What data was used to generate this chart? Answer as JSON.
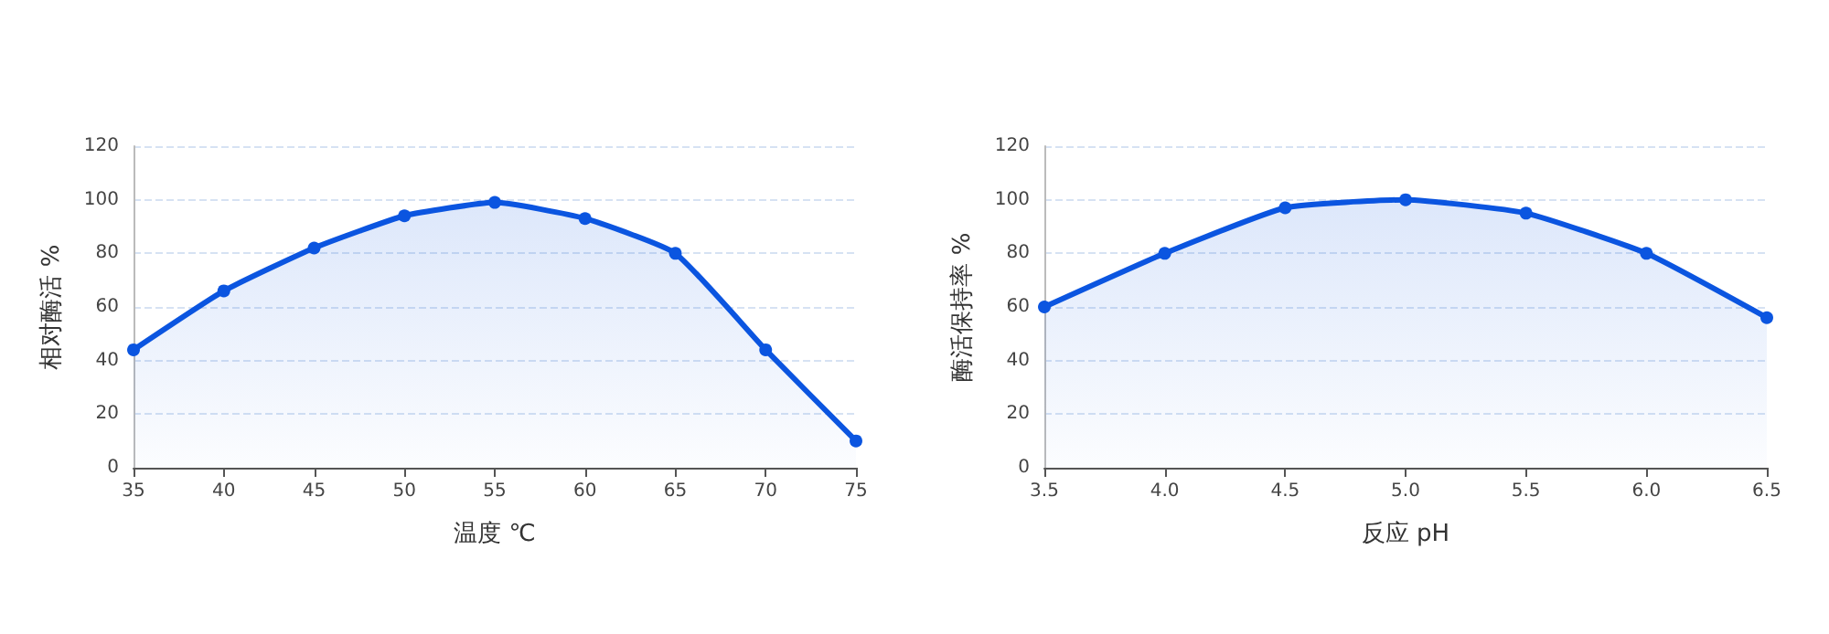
{
  "chart_data": [
    {
      "type": "area",
      "xlabel": "温度 ℃",
      "ylabel": "相对酶活 %",
      "x": [
        35,
        40,
        45,
        50,
        55,
        60,
        65,
        70,
        75
      ],
      "series": [
        {
          "color": "#0b55e0",
          "values": [
            44,
            66,
            82,
            94,
            99,
            93,
            80,
            44,
            10
          ]
        }
      ],
      "xlim": [
        35,
        75
      ],
      "xticks": [
        35,
        40,
        45,
        50,
        55,
        60,
        65,
        70,
        75
      ],
      "ylim": [
        0,
        120
      ],
      "yticks": [
        0,
        20,
        40,
        60,
        80,
        100,
        120
      ],
      "grid": "y",
      "marker": "circle",
      "line_style": "solid"
    },
    {
      "type": "area",
      "xlabel": "反应 pH",
      "ylabel": "酶活保持率 %",
      "x": [
        3.5,
        4.0,
        4.5,
        5.0,
        5.5,
        6.0,
        6.5
      ],
      "series": [
        {
          "color": "#0b55e0",
          "values": [
            60,
            80,
            97,
            100,
            95,
            80,
            56
          ]
        }
      ],
      "xlim": [
        3.5,
        6.5
      ],
      "xticks": [
        3.5,
        {
          "value": 4,
          "label": "4.0"
        },
        4.5,
        {
          "value": 5,
          "label": "5.0"
        },
        5.5,
        {
          "value": 6,
          "label": "6.0"
        },
        6.5
      ],
      "ylim": [
        0,
        120
      ],
      "yticks": [
        0,
        20,
        40,
        60,
        80,
        100,
        120
      ],
      "grid": "y",
      "marker": "circle",
      "line_style": "solid"
    }
  ]
}
